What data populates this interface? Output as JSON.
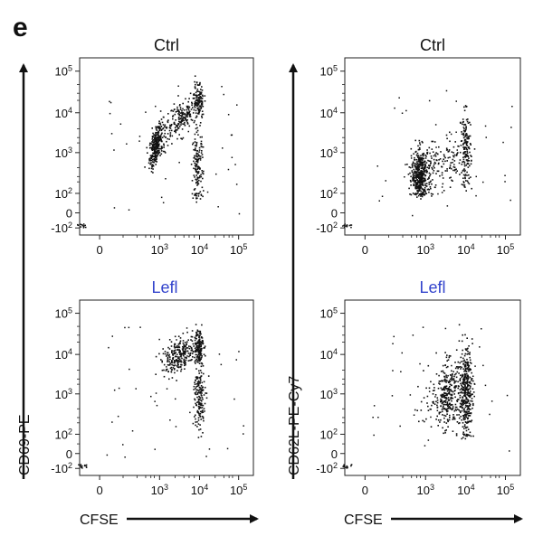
{
  "panel_label": "e",
  "y_axis_left": "CD69-PE",
  "y_axis_right": "CD62L-PE-Cy7",
  "x_axis": "CFSE",
  "tick_base": "10",
  "chart_data": [
    {
      "type": "scatter",
      "title": "Ctrl",
      "title_color": "#111111",
      "xlabel": "CFSE",
      "ylabel": "CD69-PE",
      "x_ticks": [
        "0",
        "10^3",
        "10^4",
        "10^5"
      ],
      "y_ticks": [
        "10^5",
        "10^4",
        "10^3",
        "10^2",
        "0",
        "-10^2"
      ],
      "clusters": [
        {
          "x_log": 2.85,
          "y_log": 3.2,
          "sx": 0.18,
          "sy": 0.22,
          "n": 330,
          "slope": 0.9
        },
        {
          "x_log": 3.55,
          "y_log": 3.85,
          "sx": 0.2,
          "sy": 0.2,
          "n": 170,
          "slope": 0.6
        },
        {
          "x_log": 3.98,
          "y_log": 4.25,
          "sx": 0.06,
          "sy": 0.22,
          "n": 130,
          "slope": 0
        },
        {
          "x_log": 3.95,
          "y_log": 2.6,
          "sx": 0.07,
          "sy": 0.45,
          "n": 150,
          "slope": 0
        }
      ]
    },
    {
      "type": "scatter",
      "title": "Ctrl",
      "title_color": "#111111",
      "xlabel": "CFSE",
      "ylabel": "CD62L-PE-Cy7",
      "x_ticks": [
        "0",
        "10^3",
        "10^4",
        "10^5"
      ],
      "y_ticks": [
        "10^5",
        "10^4",
        "10^3",
        "10^2",
        "0",
        "-10^2"
      ],
      "clusters": [
        {
          "x_log": 2.75,
          "y_log": 2.45,
          "sx": 0.22,
          "sy": 0.3,
          "n": 470,
          "slope": 0
        },
        {
          "x_log": 3.5,
          "y_log": 2.75,
          "sx": 0.3,
          "sy": 0.3,
          "n": 110,
          "slope": 0
        },
        {
          "x_log": 4.0,
          "y_log": 3.05,
          "sx": 0.06,
          "sy": 0.45,
          "n": 160,
          "slope": 0
        }
      ]
    },
    {
      "type": "scatter",
      "title": "Lefl",
      "title_color": "#3344cc",
      "xlabel": "CFSE",
      "ylabel": "CD69-PE",
      "x_ticks": [
        "0",
        "10^3",
        "10^4",
        "10^5"
      ],
      "y_ticks": [
        "10^5",
        "10^4",
        "10^3",
        "10^2",
        "0",
        "-10^2"
      ],
      "clusters": [
        {
          "x_log": 3.5,
          "y_log": 3.95,
          "sx": 0.22,
          "sy": 0.2,
          "n": 260,
          "slope": 0.4
        },
        {
          "x_log": 3.98,
          "y_log": 4.2,
          "sx": 0.06,
          "sy": 0.22,
          "n": 150,
          "slope": 0
        },
        {
          "x_log": 4.0,
          "y_log": 2.9,
          "sx": 0.07,
          "sy": 0.45,
          "n": 170,
          "slope": 0
        }
      ]
    },
    {
      "type": "scatter",
      "title": "Lefl",
      "title_color": "#3344cc",
      "xlabel": "CFSE",
      "ylabel": "CD62L-PE-Cy7",
      "x_ticks": [
        "0",
        "10^3",
        "10^4",
        "10^5"
      ],
      "y_ticks": [
        "10^5",
        "10^4",
        "10^3",
        "10^2",
        "0",
        "-10^2"
      ],
      "clusters": [
        {
          "x_log": 3.55,
          "y_log": 3.0,
          "sx": 0.15,
          "sy": 0.4,
          "n": 270,
          "slope": 0
        },
        {
          "x_log": 4.0,
          "y_log": 3.05,
          "sx": 0.08,
          "sy": 0.55,
          "n": 380,
          "slope": 0
        },
        {
          "x_log": 3.3,
          "y_log": 2.9,
          "sx": 0.3,
          "sy": 0.45,
          "n": 60,
          "slope": 0
        }
      ]
    }
  ]
}
